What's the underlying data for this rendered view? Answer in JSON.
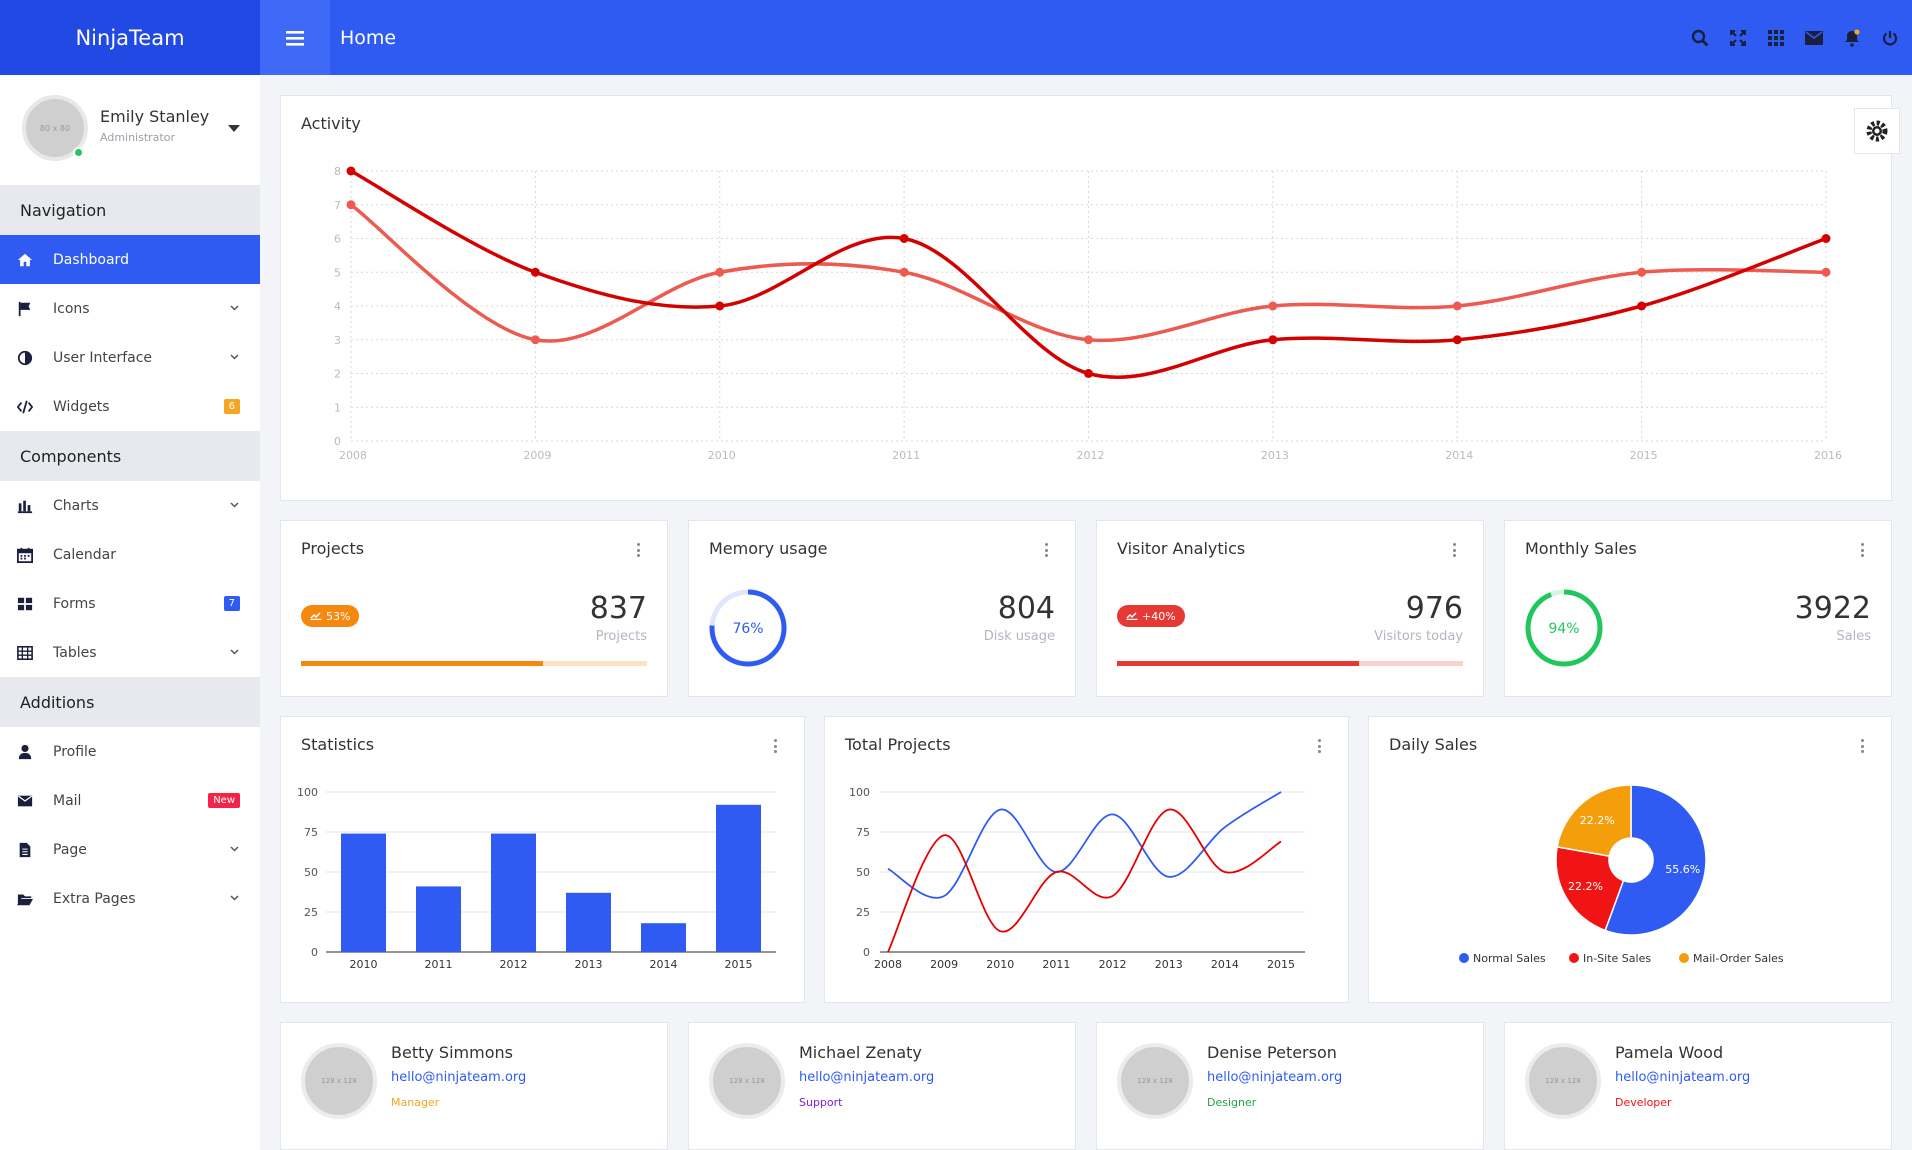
{
  "brand": "NinjaTeam",
  "header": {
    "title": "Home",
    "icons": [
      "search-icon",
      "expand-icon",
      "grid-icon",
      "mail-icon",
      "bell-icon",
      "power-icon"
    ]
  },
  "user": {
    "name": "Emily Stanley",
    "role": "Administrator",
    "avatar_text": "80 x 80"
  },
  "sidebar": {
    "sections": [
      {
        "title": "Navigation",
        "items": [
          {
            "label": "Dashboard",
            "icon": "home-icon",
            "active": true
          },
          {
            "label": "Icons",
            "icon": "flag-icon",
            "chevron": true
          },
          {
            "label": "User Interface",
            "icon": "contrast-icon",
            "chevron": true
          },
          {
            "label": "Widgets",
            "icon": "code-icon",
            "badge": "6",
            "badge_color": "#f5a623"
          }
        ]
      },
      {
        "title": "Components",
        "items": [
          {
            "label": "Charts",
            "icon": "bar-chart-icon",
            "chevron": true
          },
          {
            "label": "Calendar",
            "icon": "calendar-icon"
          },
          {
            "label": "Forms",
            "icon": "tiles-icon",
            "badge": "7",
            "badge_color": "#2f5bf3"
          },
          {
            "label": "Tables",
            "icon": "table-icon",
            "chevron": true
          }
        ]
      },
      {
        "title": "Additions",
        "items": [
          {
            "label": "Profile",
            "icon": "user-icon"
          },
          {
            "label": "Mail",
            "icon": "envelope-icon",
            "badge": "New",
            "badge_color": "#f5224a"
          },
          {
            "label": "Page",
            "icon": "file-icon",
            "chevron": true
          },
          {
            "label": "Extra Pages",
            "icon": "folder-open-icon",
            "chevron": true
          }
        ]
      }
    ]
  },
  "activity": {
    "title": "Activity",
    "chart_data": {
      "type": "line",
      "x": [
        "2008",
        "2009",
        "2010",
        "2011",
        "2012",
        "2013",
        "2014",
        "2015",
        "2016"
      ],
      "ylim": [
        0,
        8
      ],
      "yticks": [
        "0",
        "1",
        "2",
        "3",
        "4",
        "5",
        "6",
        "7",
        "8"
      ],
      "series": [
        {
          "color": "#d40000",
          "values": [
            8,
            5,
            4,
            6,
            2,
            3,
            3,
            4,
            6
          ]
        },
        {
          "color": "#ec5a50",
          "values": [
            7,
            3,
            5,
            5,
            3,
            4,
            4,
            5,
            5
          ]
        }
      ]
    }
  },
  "stats_cards": [
    {
      "title": "Projects",
      "kind": "bar",
      "badge": "53%",
      "badge_color": "#f5880f",
      "value": "837",
      "label": "Projects",
      "progress": 0.7,
      "bar_color": "#f5880f",
      "track_color": "#fde1c4"
    },
    {
      "title": "Memory usage",
      "kind": "ring",
      "ring_label": "76%",
      "ring_value": 0.76,
      "ring_color": "#2f5bf3",
      "ring_track": "#dfe6fd",
      "value": "804",
      "label": "Disk usage"
    },
    {
      "title": "Visitor Analytics",
      "kind": "bar",
      "badge": "+40%",
      "badge_color": "#e53935",
      "value": "976",
      "label": "Visitors today",
      "progress": 0.7,
      "bar_color": "#e53935",
      "track_color": "#f9d2d0"
    },
    {
      "title": "Monthly Sales",
      "kind": "ring",
      "ring_label": "94%",
      "ring_value": 0.94,
      "ring_color": "#22c55e",
      "ring_track": "#d6f5e0",
      "value": "3922",
      "label": "Sales"
    }
  ],
  "statistics": {
    "title": "Statistics",
    "chart_data": {
      "type": "bar",
      "categories": [
        "2010",
        "2011",
        "2012",
        "2013",
        "2014",
        "2015"
      ],
      "values": [
        74,
        41,
        74,
        37,
        18,
        92
      ],
      "ylim": [
        0,
        100
      ],
      "yticks": [
        "0",
        "25",
        "50",
        "75",
        "100"
      ],
      "color": "#2f5bf3"
    }
  },
  "total_projects": {
    "title": "Total Projects",
    "chart_data": {
      "type": "line",
      "categories": [
        "2008",
        "2009",
        "2010",
        "2011",
        "2012",
        "2013",
        "2014",
        "2015"
      ],
      "ylim": [
        0,
        100
      ],
      "yticks": [
        "0",
        "25",
        "50",
        "75",
        "100"
      ],
      "series": [
        {
          "color": "#2f5bf3",
          "values": [
            52,
            35,
            89,
            50,
            86,
            47,
            78,
            100
          ]
        },
        {
          "color": "#e60000",
          "values": [
            0,
            73,
            13,
            50,
            35,
            89,
            50,
            69
          ]
        }
      ]
    }
  },
  "daily_sales": {
    "title": "Daily Sales",
    "chart_data": {
      "type": "pie",
      "slices": [
        {
          "label": "Normal Sales",
          "value": 55.6,
          "display": "55.6%",
          "color": "#2f5bf3"
        },
        {
          "label": "In-Site Sales",
          "value": 22.2,
          "display": "22.2%",
          "color": "#f01414"
        },
        {
          "label": "Mail-Order Sales",
          "value": 22.2,
          "display": "22.2%",
          "color": "#f59e0b"
        }
      ]
    }
  },
  "team": [
    {
      "name": "Betty Simmons",
      "email": "hello@ninjateam.org",
      "role": "Manager",
      "role_color": "#f5a623",
      "avatar_text": "128 x 128"
    },
    {
      "name": "Michael Zenaty",
      "email": "hello@ninjateam.org",
      "role": "Support",
      "role_color": "#7a1fd6",
      "avatar_text": "128 x 128"
    },
    {
      "name": "Denise Peterson",
      "email": "hello@ninjateam.org",
      "role": "Designer",
      "role_color": "#22a34a",
      "avatar_text": "128 x 128"
    },
    {
      "name": "Pamela Wood",
      "email": "hello@ninjateam.org",
      "role": "Developer",
      "role_color": "#f01414",
      "avatar_text": "128 x 128"
    }
  ]
}
